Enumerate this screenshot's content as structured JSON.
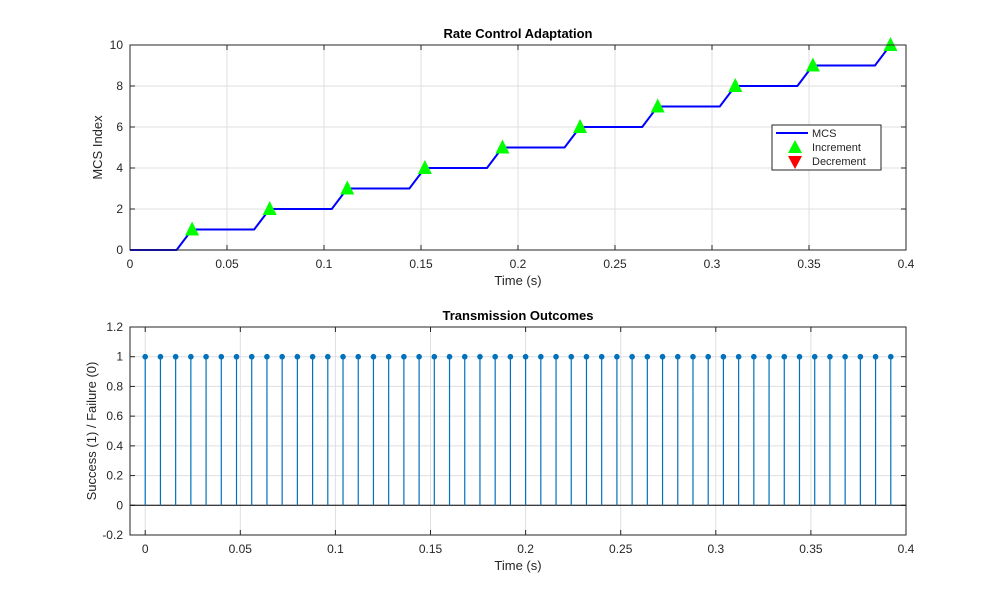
{
  "chart_data": [
    {
      "type": "line",
      "title": "Rate Control Adaptation",
      "xlabel": "Time (s)",
      "ylabel": "MCS Index",
      "xlim": [
        0,
        0.4
      ],
      "ylim": [
        0,
        10
      ],
      "xticks": [
        0,
        0.05,
        0.1,
        0.15,
        0.2,
        0.25,
        0.3,
        0.35,
        0.4
      ],
      "xtick_labels": [
        "0",
        "0.05",
        "0.1",
        "0.15",
        "0.2",
        "0.25",
        "0.3",
        "0.35",
        "0.4"
      ],
      "yticks": [
        0,
        2,
        4,
        6,
        8,
        10
      ],
      "ytick_labels": [
        "0",
        "2",
        "4",
        "6",
        "8",
        "10"
      ],
      "grid": true,
      "legend_placement": "right",
      "series": [
        {
          "name": "MCS",
          "kind": "line",
          "color": "#0000FF",
          "x": [
            0,
            0.008,
            0.016,
            0.024,
            0.032,
            0.04,
            0.048,
            0.056,
            0.064,
            0.072,
            0.08,
            0.088,
            0.096,
            0.104,
            0.112,
            0.12,
            0.128,
            0.136,
            0.144,
            0.152,
            0.16,
            0.168,
            0.176,
            0.184,
            0.192,
            0.2,
            0.208,
            0.216,
            0.224,
            0.232,
            0.24,
            0.248,
            0.256,
            0.264,
            0.272,
            0.28,
            0.288,
            0.296,
            0.304,
            0.312,
            0.32,
            0.328,
            0.336,
            0.344,
            0.352,
            0.36,
            0.368,
            0.376,
            0.384,
            0.392
          ],
          "y": [
            0,
            0,
            0,
            0,
            1,
            1,
            1,
            1,
            1,
            2,
            2,
            2,
            2,
            2,
            3,
            3,
            3,
            3,
            3,
            4,
            4,
            4,
            4,
            4,
            5,
            5,
            5,
            5,
            5,
            6,
            6,
            6,
            6,
            6,
            7,
            7,
            7,
            7,
            7,
            8,
            8,
            8,
            8,
            8,
            9,
            9,
            9,
            9,
            9,
            10
          ]
        },
        {
          "name": "Increment",
          "kind": "marker-triangle-up",
          "color": "#00FF00",
          "x": [
            0.032,
            0.072,
            0.112,
            0.152,
            0.192,
            0.232,
            0.272,
            0.312,
            0.352,
            0.392
          ],
          "y": [
            1,
            2,
            3,
            4,
            5,
            6,
            7,
            8,
            9,
            10
          ]
        },
        {
          "name": "Decrement",
          "kind": "marker-triangle-down",
          "color": "#FF0000",
          "x": [],
          "y": []
        }
      ]
    },
    {
      "type": "stem",
      "title": "Transmission Outcomes",
      "xlabel": "Time (s)",
      "ylabel": "Success (1) / Failure (0)",
      "xlim": [
        -0.008,
        0.4
      ],
      "ylim": [
        -0.2,
        1.2
      ],
      "xticks": [
        0,
        0.05,
        0.1,
        0.15,
        0.2,
        0.25,
        0.3,
        0.35,
        0.4
      ],
      "xtick_labels": [
        "0",
        "0.05",
        "0.1",
        "0.15",
        "0.2",
        "0.25",
        "0.3",
        "0.35",
        "0.4"
      ],
      "yticks": [
        -0.2,
        0,
        0.2,
        0.4,
        0.6,
        0.8,
        1,
        1.2
      ],
      "ytick_labels": [
        "-0.2",
        "0",
        "0.2",
        "0.4",
        "0.6",
        "0.8",
        "1",
        "1.2"
      ],
      "grid": true,
      "series": [
        {
          "color": "#0072BD",
          "x": [
            0,
            0.008,
            0.016,
            0.024,
            0.032,
            0.04,
            0.048,
            0.056,
            0.064,
            0.072,
            0.08,
            0.088,
            0.096,
            0.104,
            0.112,
            0.12,
            0.128,
            0.136,
            0.144,
            0.152,
            0.16,
            0.168,
            0.176,
            0.184,
            0.192,
            0.2,
            0.208,
            0.216,
            0.224,
            0.232,
            0.24,
            0.248,
            0.256,
            0.264,
            0.272,
            0.28,
            0.288,
            0.296,
            0.304,
            0.312,
            0.32,
            0.328,
            0.336,
            0.344,
            0.352,
            0.36,
            0.368,
            0.376,
            0.384,
            0.392
          ],
          "y": [
            1,
            1,
            1,
            1,
            1,
            1,
            1,
            1,
            1,
            1,
            1,
            1,
            1,
            1,
            1,
            1,
            1,
            1,
            1,
            1,
            1,
            1,
            1,
            1,
            1,
            1,
            1,
            1,
            1,
            1,
            1,
            1,
            1,
            1,
            1,
            1,
            1,
            1,
            1,
            1,
            1,
            1,
            1,
            1,
            1,
            1,
            1,
            1,
            1,
            1
          ]
        }
      ]
    }
  ]
}
